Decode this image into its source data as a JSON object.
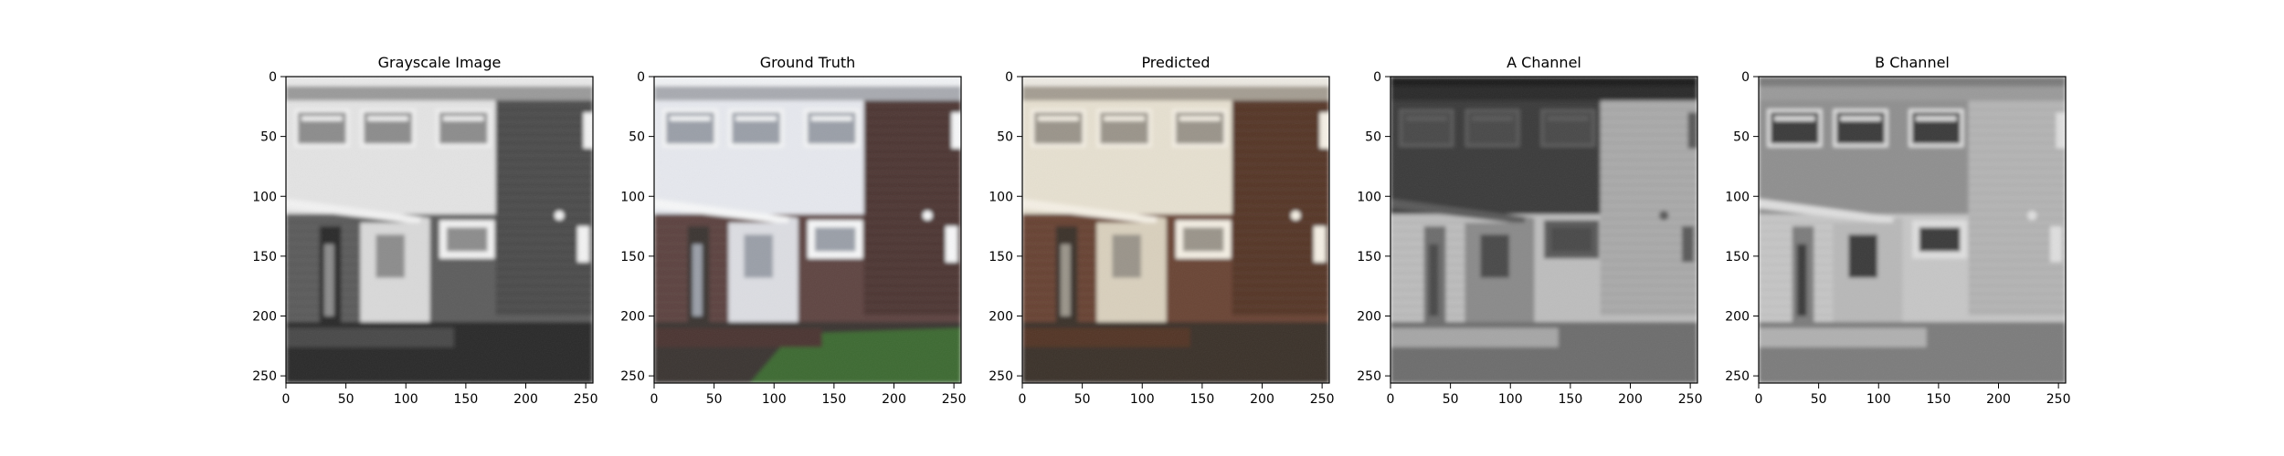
{
  "chart_data": [
    {
      "type": "image",
      "title": "Grayscale Image",
      "image": "grayscale",
      "xlim": [
        0,
        256
      ],
      "ylim": [
        256,
        0
      ],
      "xticks": [
        0,
        50,
        100,
        150,
        200,
        250
      ],
      "yticks": [
        0,
        50,
        100,
        150,
        200,
        250
      ]
    },
    {
      "type": "image",
      "title": "Ground Truth",
      "image": "color-ground-truth",
      "xlim": [
        0,
        256
      ],
      "ylim": [
        256,
        0
      ],
      "xticks": [
        0,
        50,
        100,
        150,
        200,
        250
      ],
      "yticks": [
        0,
        50,
        100,
        150,
        200,
        250
      ]
    },
    {
      "type": "image",
      "title": "Predicted",
      "image": "color-predicted",
      "xlim": [
        0,
        256
      ],
      "ylim": [
        256,
        0
      ],
      "xticks": [
        0,
        50,
        100,
        150,
        200,
        250
      ],
      "yticks": [
        0,
        50,
        100,
        150,
        200,
        250
      ]
    },
    {
      "type": "image",
      "title": "A Channel",
      "image": "a-channel",
      "xlim": [
        0,
        256
      ],
      "ylim": [
        256,
        0
      ],
      "xticks": [
        0,
        50,
        100,
        150,
        200,
        250
      ],
      "yticks": [
        0,
        50,
        100,
        150,
        200,
        250
      ]
    },
    {
      "type": "image",
      "title": "B Channel",
      "image": "b-channel",
      "xlim": [
        0,
        256
      ],
      "ylim": [
        256,
        0
      ],
      "xticks": [
        0,
        50,
        100,
        150,
        200,
        250
      ],
      "yticks": [
        0,
        50,
        100,
        150,
        200,
        250
      ]
    }
  ]
}
